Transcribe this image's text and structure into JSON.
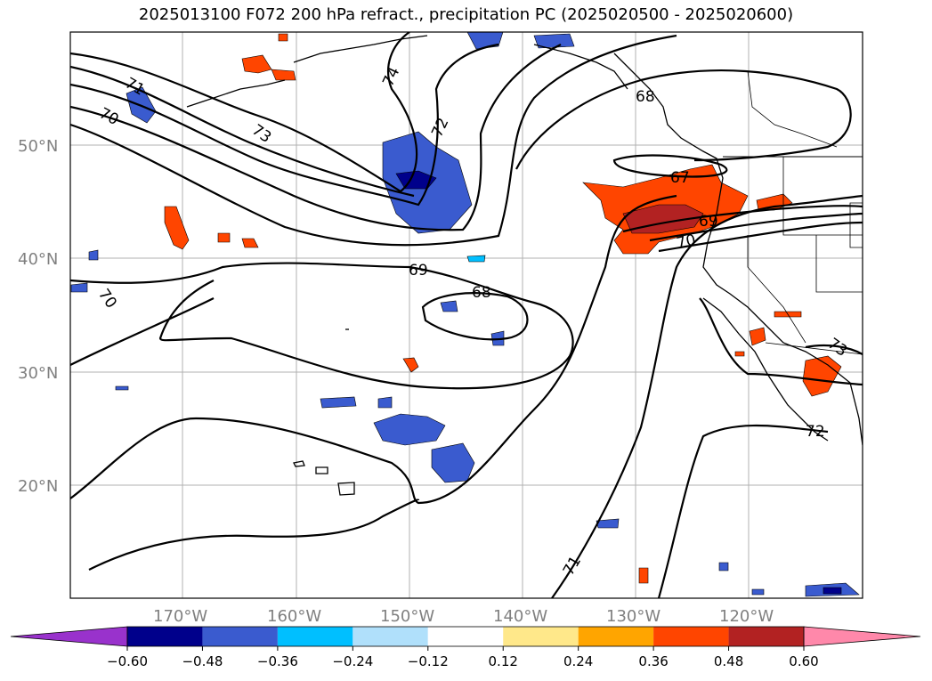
{
  "title": "2025013100 F072 200 hPa refract., precipitation PC (2025020500 - 2025020600)",
  "map": {
    "lat_labels": [
      "50°N",
      "40°N",
      "30°N",
      "20°N"
    ],
    "lon_labels": [
      "170°W",
      "160°W",
      "150°W",
      "140°W",
      "130°W",
      "120°W"
    ],
    "contour_labels": [
      "71",
      "70",
      "73",
      "74",
      "72",
      "68",
      "67",
      "69",
      "70",
      "69",
      "68",
      "70",
      "71",
      "72",
      "73"
    ]
  },
  "colorbar": {
    "ticks": [
      "−0.60",
      "−0.48",
      "−0.36",
      "−0.24",
      "−0.12",
      "0.12",
      "0.24",
      "0.36",
      "0.48",
      "0.60"
    ],
    "colors": [
      "#9932cc",
      "#00008b",
      "#3a5bcf",
      "#00bfff",
      "#b0e0fb",
      "#ffffff",
      "#ffe88a",
      "#ffa500",
      "#ff4500",
      "#b22222",
      "#ff88aa"
    ]
  }
}
